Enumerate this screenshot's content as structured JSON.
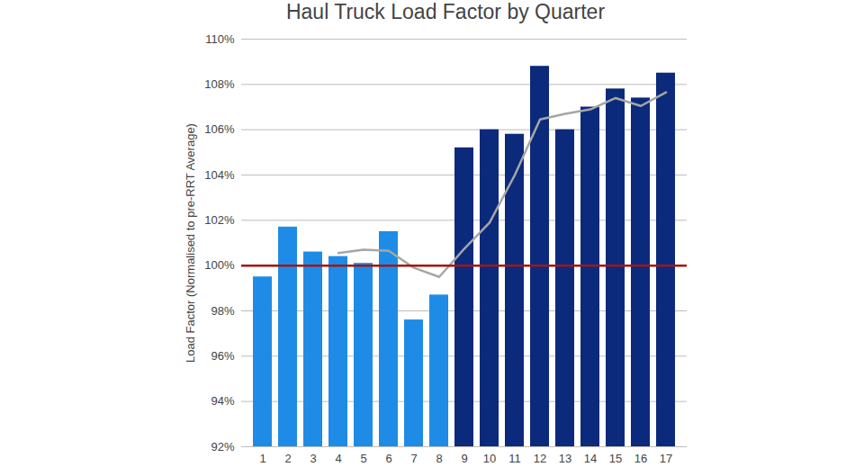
{
  "chart_data": {
    "type": "bar",
    "title": "Haul Truck Load Factor by Quarter",
    "y_label": "Load Factor (Normalised to pre-RRT Average)",
    "categories": [
      "1",
      "2",
      "3",
      "4",
      "5",
      "6",
      "7",
      "8",
      "9",
      "10",
      "11",
      "12",
      "13",
      "14",
      "15",
      "16",
      "17"
    ],
    "series": [
      {
        "type": "bar",
        "values": [
          99.5,
          101.7,
          100.6,
          100.4,
          100.1,
          101.5,
          97.6,
          98.7,
          105.2,
          106.0,
          105.8,
          108.8,
          106.0,
          107.0,
          107.8,
          107.4,
          108.5
        ],
        "colors": [
          "#1e8ce6",
          "#1e8ce6",
          "#1e8ce6",
          "#1e8ce6",
          "#1e8ce6",
          "#1e8ce6",
          "#1e8ce6",
          "#1e8ce6",
          "#0c2a7c",
          "#0c2a7c",
          "#0c2a7c",
          "#0c2a7c",
          "#0c2a7c",
          "#0c2a7c",
          "#0c2a7c",
          "#0c2a7c",
          "#0c2a7c"
        ]
      },
      {
        "type": "line",
        "color": "#a6a6a6",
        "values": [
          null,
          null,
          null,
          100.55,
          100.7,
          100.65,
          99.9,
          99.5,
          100.75,
          101.9,
          104.0,
          106.45,
          106.7,
          106.9,
          107.4,
          107.05,
          107.65
        ]
      }
    ],
    "reference_line": {
      "value": 100,
      "color": "#a31515"
    },
    "ylim": [
      92,
      110
    ],
    "yticks": [
      {
        "value": 92,
        "label": "92%"
      },
      {
        "value": 94,
        "label": "94%"
      },
      {
        "value": 96,
        "label": "96%"
      },
      {
        "value": 98,
        "label": "98%"
      },
      {
        "value": 100,
        "label": "100%"
      },
      {
        "value": 102,
        "label": "102%"
      },
      {
        "value": 104,
        "label": "104%"
      },
      {
        "value": 106,
        "label": "106%"
      },
      {
        "value": 108,
        "label": "108%"
      },
      {
        "value": 110,
        "label": "110%"
      }
    ],
    "grid": true
  }
}
